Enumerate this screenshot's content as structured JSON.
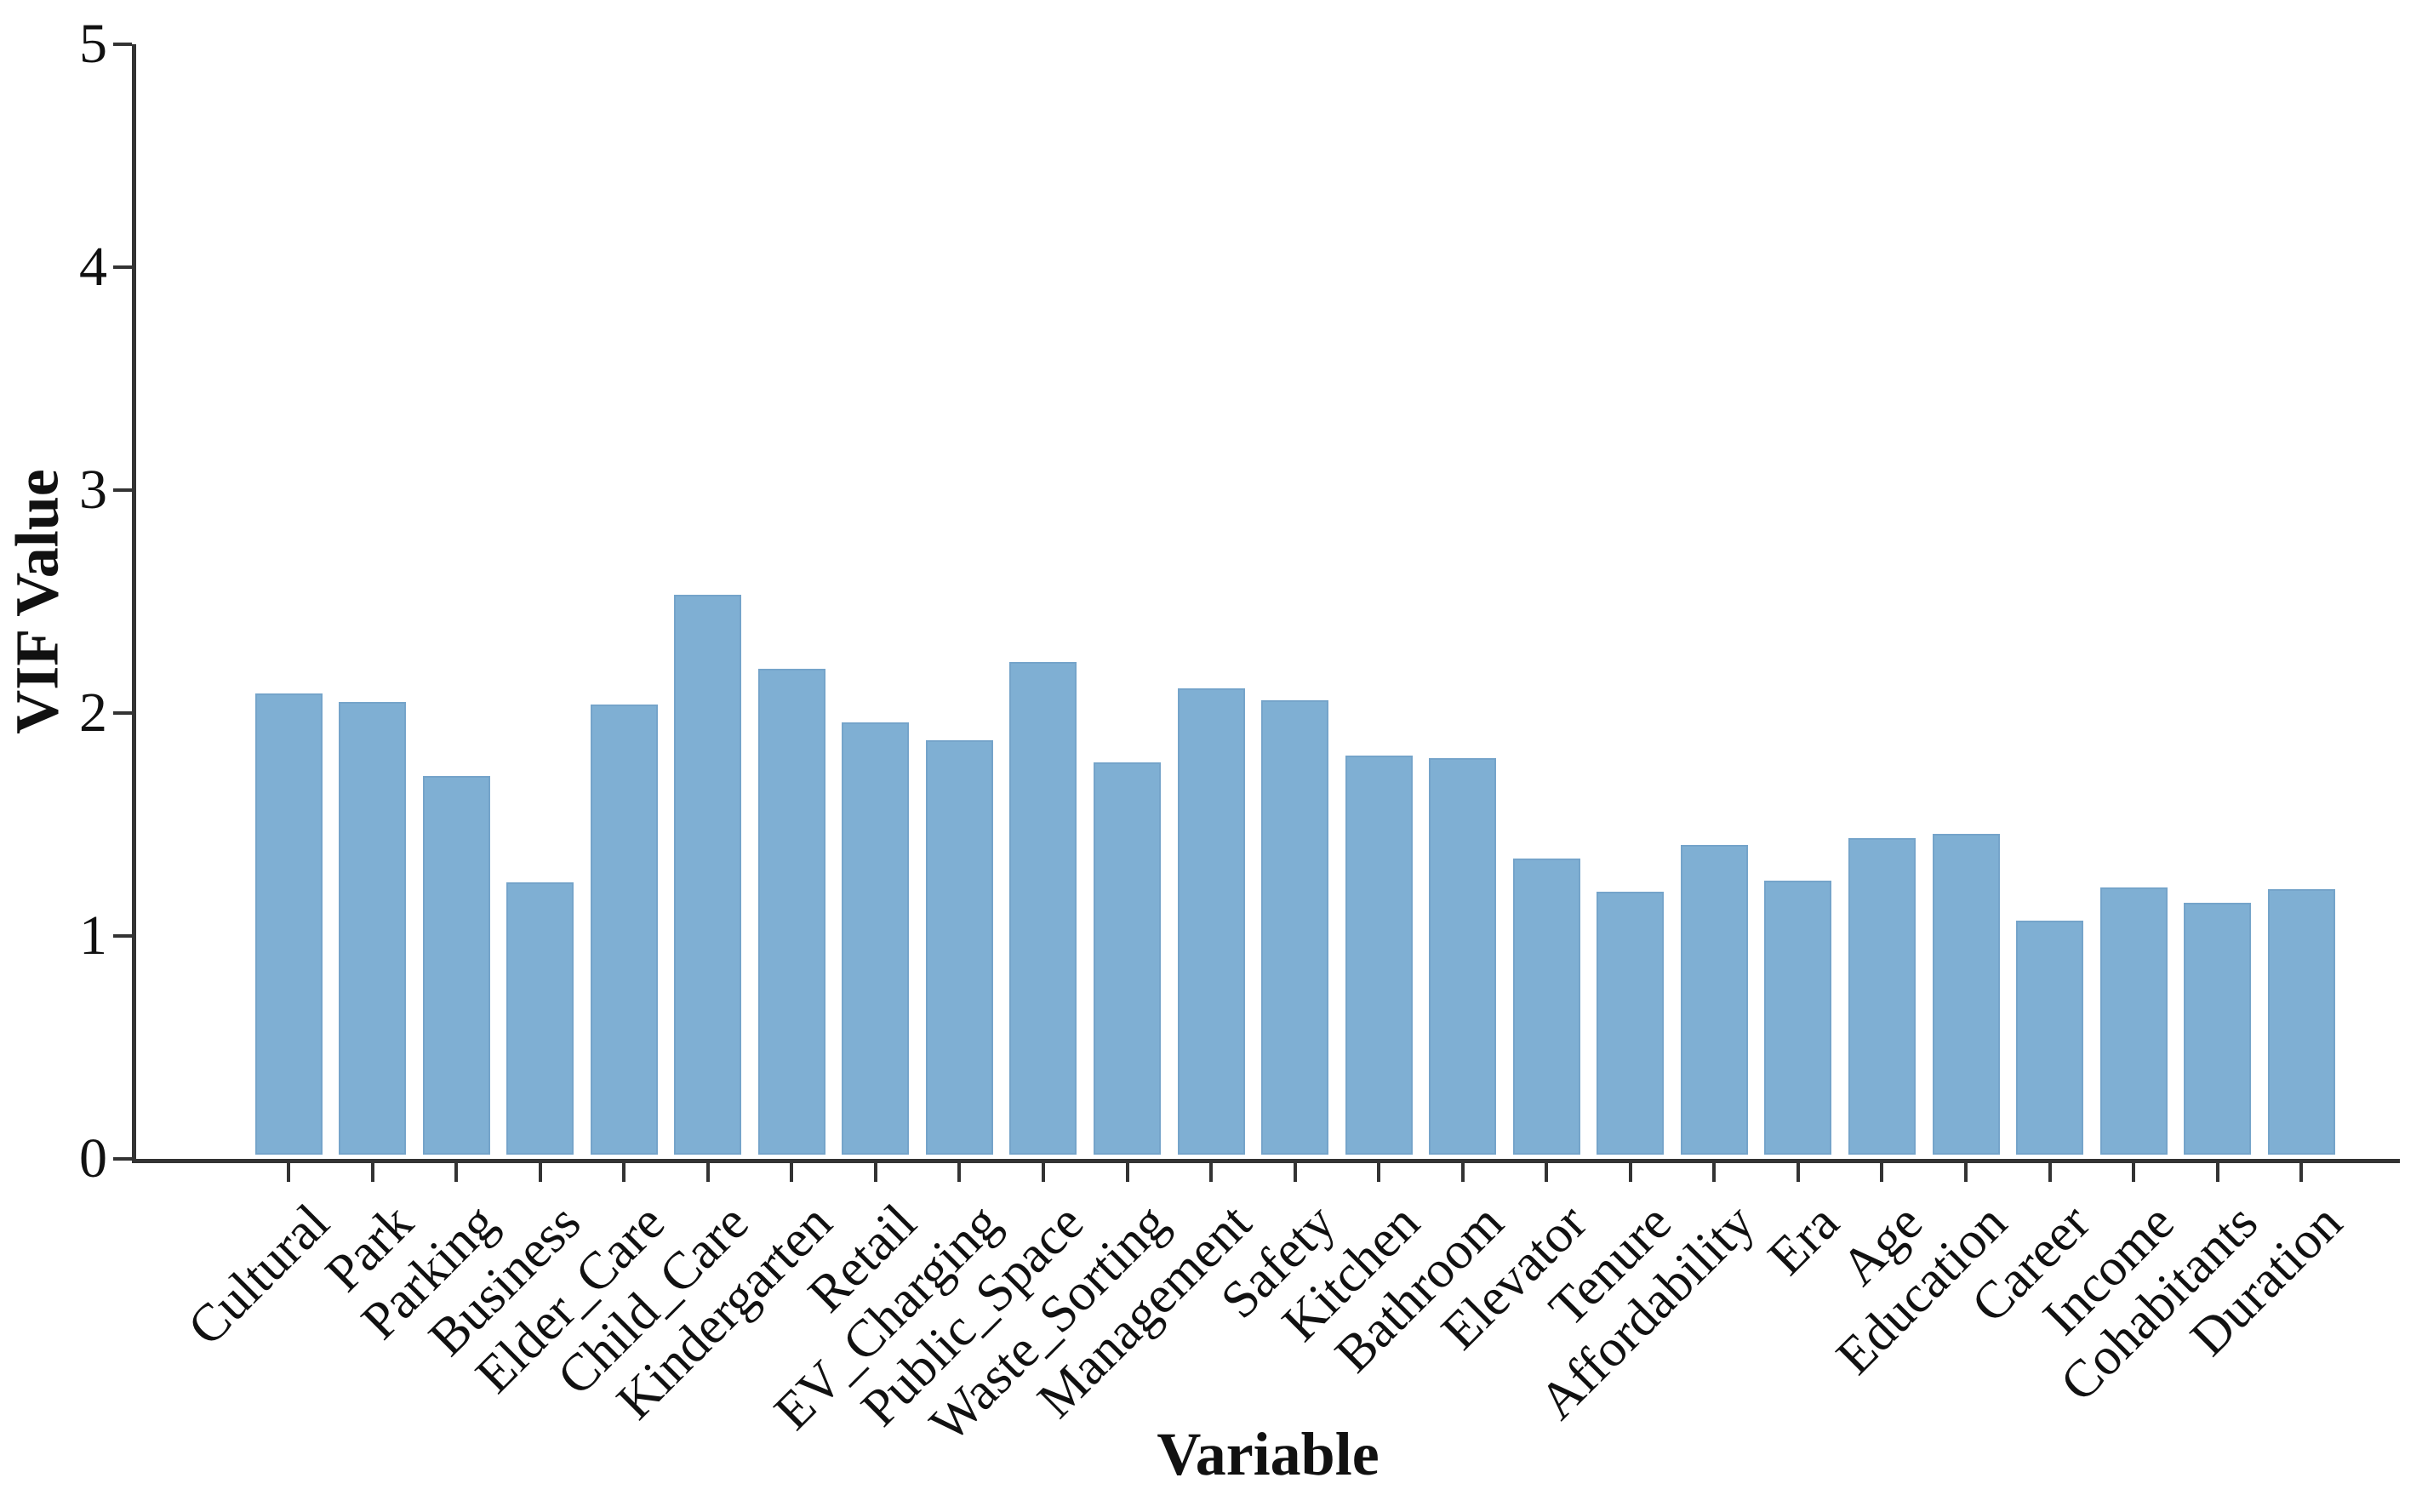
{
  "chart_data": {
    "type": "bar",
    "title": "",
    "xlabel": "Variable",
    "ylabel": "VIF Value",
    "categories": [
      "Cultural",
      "Park",
      "Parking",
      "Business",
      "Elder_Care",
      "Child_Care",
      "Kindergarten",
      "Retail",
      "EV_Charging",
      "Public_Space",
      "Waste_Sorting",
      "Management",
      "Safety",
      "Kitchen",
      "Bathroom",
      "Elevator",
      "Tenure",
      "Affordability",
      "Era",
      "Age",
      "Education",
      "Career",
      "Income",
      "Cohabitants",
      "Duration"
    ],
    "values": [
      2.07,
      2.03,
      1.7,
      1.22,
      2.02,
      2.51,
      2.18,
      1.94,
      1.86,
      2.21,
      1.76,
      2.09,
      2.04,
      1.79,
      1.78,
      1.33,
      1.18,
      1.39,
      1.23,
      1.42,
      1.44,
      1.05,
      1.2,
      1.13,
      1.19
    ],
    "ylim": [
      0,
      5
    ],
    "yticks": [
      0,
      1,
      2,
      3,
      4,
      5
    ],
    "x_tick_rotation_deg": 45,
    "grid": false,
    "legend": null,
    "bar_color": "#7fafd3",
    "axis_color": "#333333",
    "text_color": "#111111"
  }
}
